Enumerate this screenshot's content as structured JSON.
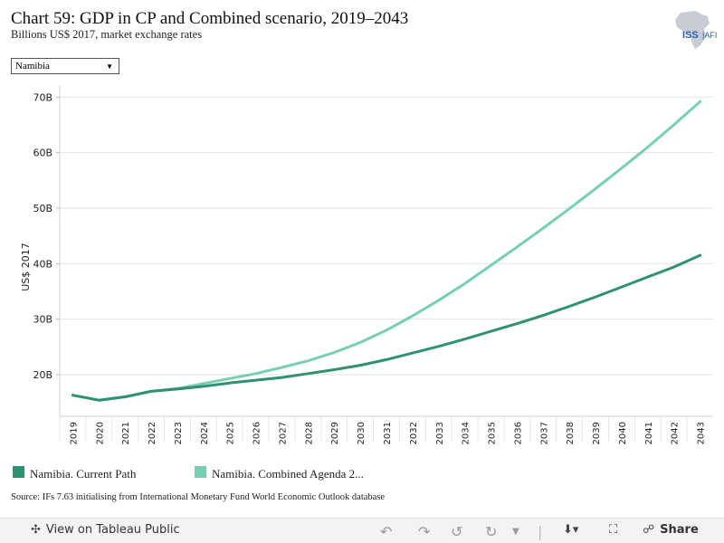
{
  "header": {
    "title": "Chart 59: GDP in CP and Combined scenario, 2019–2043",
    "subtitle": "Billions US$ 2017, market exchange rates",
    "logo_text": "ISS AFRICA"
  },
  "filter": {
    "selected": "Namibia"
  },
  "legend": {
    "items": [
      {
        "label": "Namibia. Current Path",
        "color": "#2e9172"
      },
      {
        "label": "Namibia. Combined Agenda 2...",
        "color": "#77d0b2"
      }
    ]
  },
  "source": "Source: IFs 7.63 initialising from International Monetary Fund World Economic Outlook database",
  "toolbar": {
    "view_label": "View on Tableau Public",
    "share_label": "Share"
  },
  "chart_data": {
    "type": "line",
    "title": "Chart 59: GDP in CP and Combined scenario, 2019–2043",
    "ylabel": "US$ 2017",
    "xlabel": "",
    "ylim": [
      12.5,
      72
    ],
    "yticks": [
      20,
      30,
      40,
      50,
      60,
      70
    ],
    "ytick_labels": [
      "20B",
      "30B",
      "40B",
      "50B",
      "60B",
      "70B"
    ],
    "grid": true,
    "legend_position": "bottom-left",
    "x": [
      "2019",
      "2020",
      "2021",
      "2022",
      "2023",
      "2024",
      "2025",
      "2026",
      "2027",
      "2028",
      "2029",
      "2030",
      "2031",
      "2032",
      "2033",
      "2034",
      "2035",
      "2036",
      "2037",
      "2038",
      "2039",
      "2040",
      "2041",
      "2042",
      "2043"
    ],
    "series": [
      {
        "name": "Namibia. Current Path",
        "color": "#2e9172",
        "values": [
          16.3,
          15.4,
          16.0,
          17.0,
          17.4,
          17.9,
          18.5,
          19.0,
          19.5,
          20.2,
          20.9,
          21.7,
          22.7,
          23.9,
          25.1,
          26.4,
          27.8,
          29.2,
          30.7,
          32.3,
          34.0,
          35.8,
          37.6,
          39.4,
          41.5
        ]
      },
      {
        "name": "Namibia. Combined Agenda 2...",
        "color": "#77d0b2",
        "values": [
          16.3,
          15.4,
          16.0,
          17.0,
          17.5,
          18.4,
          19.3,
          20.2,
          21.3,
          22.5,
          24.0,
          25.8,
          28.0,
          30.6,
          33.4,
          36.4,
          39.7,
          43.0,
          46.4,
          49.9,
          53.5,
          57.2,
          61.0,
          65.0,
          69.2
        ]
      }
    ]
  }
}
